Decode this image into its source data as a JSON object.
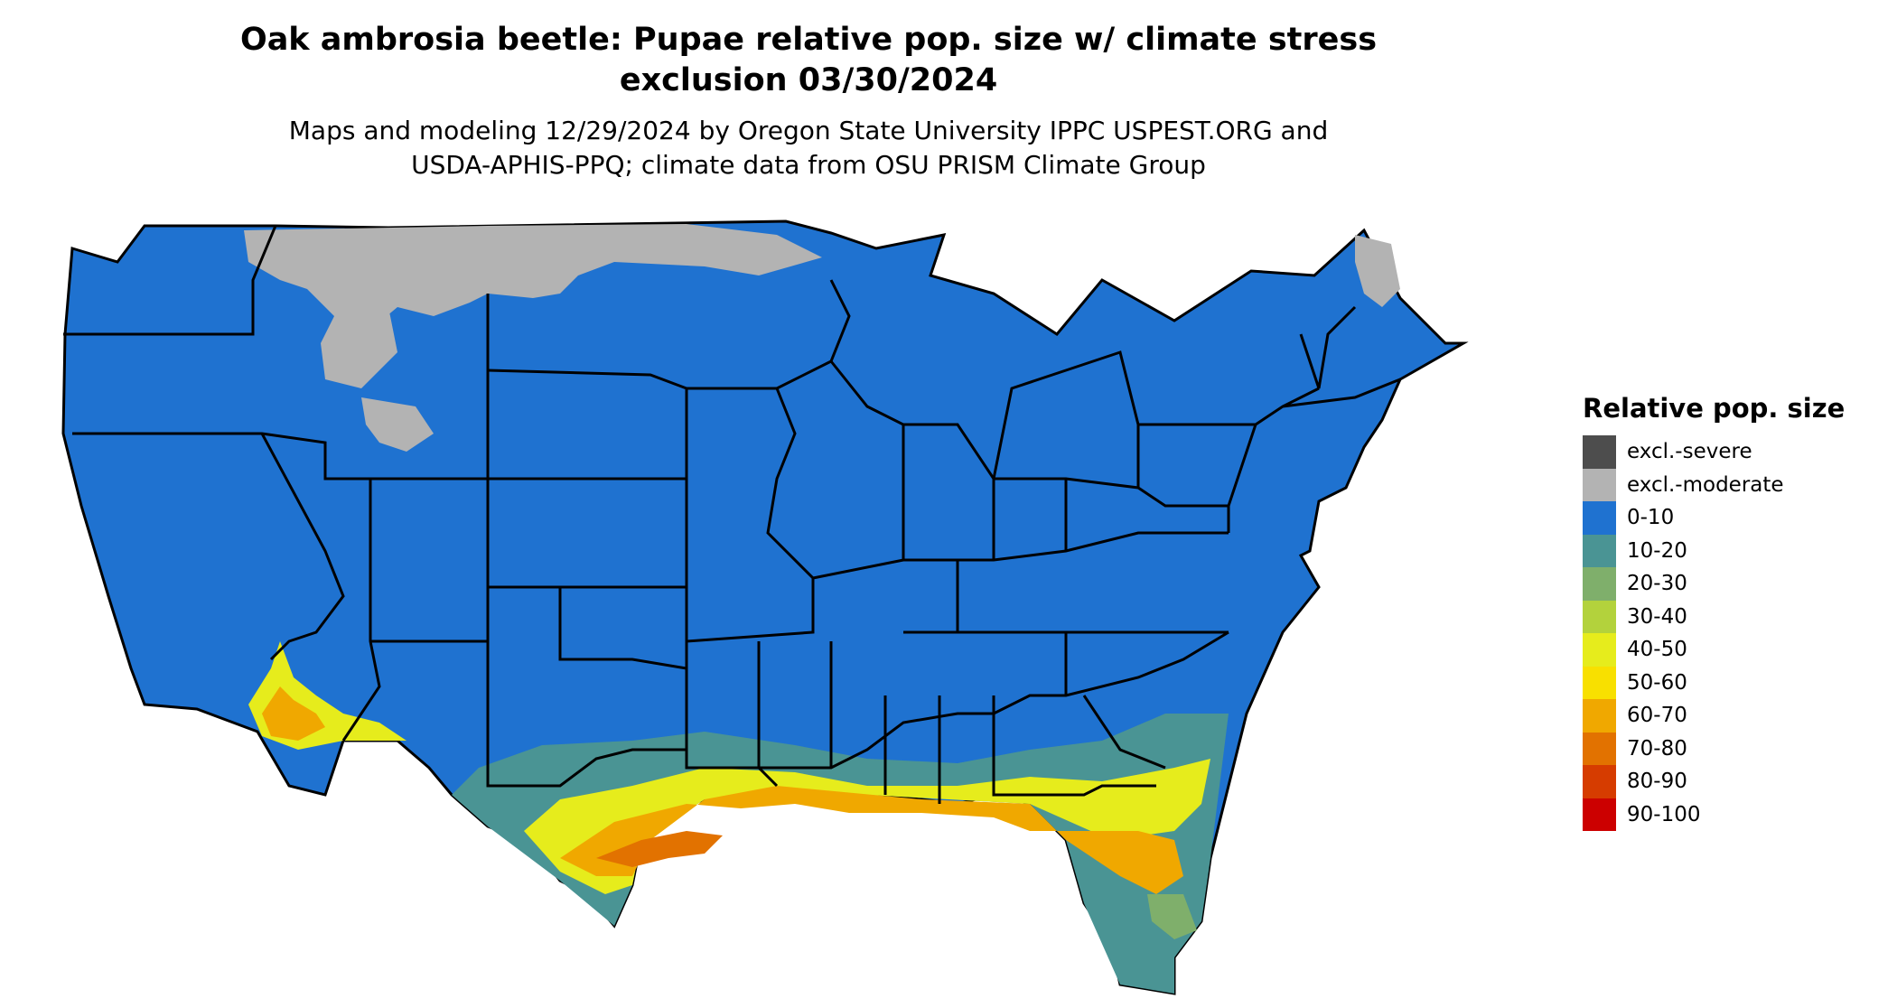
{
  "header": {
    "title_line1": "Oak ambrosia beetle: Pupae relative pop. size w/ climate stress",
    "title_line2": "exclusion 03/30/2024",
    "subtitle_line1": "Maps and modeling 12/29/2024 by Oregon State University IPPC USPEST.ORG and",
    "subtitle_line2": "USDA-APHIS-PPQ; climate data from OSU PRISM Climate Group"
  },
  "legend": {
    "title": "Relative pop. size",
    "items": [
      {
        "label": "excl.-severe",
        "color": "#4d4d4d"
      },
      {
        "label": "excl.-moderate",
        "color": "#b3b3b3"
      },
      {
        "label": "0-10",
        "color": "#1f72d0"
      },
      {
        "label": "10-20",
        "color": "#4a9494"
      },
      {
        "label": "20-30",
        "color": "#7faf6b"
      },
      {
        "label": "30-40",
        "color": "#b3d23c"
      },
      {
        "label": "40-50",
        "color": "#e6ec1c"
      },
      {
        "label": "50-60",
        "color": "#f8e000"
      },
      {
        "label": "60-70",
        "color": "#f0a800"
      },
      {
        "label": "70-80",
        "color": "#e27200"
      },
      {
        "label": "80-90",
        "color": "#d63c00"
      },
      {
        "label": "90-100",
        "color": "#cc0000"
      }
    ]
  },
  "map": {
    "region": "Contiguous United States",
    "base_color": "#1f72d0",
    "excluded_color": "#b3b3b3",
    "border_color": "#000000"
  }
}
